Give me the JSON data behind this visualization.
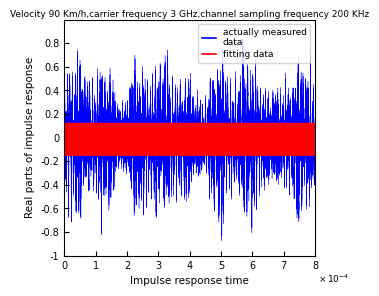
{
  "title": "Velocity 90 Km/h,carrier frequency 3 GHz,channel sampling frequency 200 KHz",
  "xlabel": "Impulse response time",
  "ylabel": "Real parts of impulse response",
  "xlim": [
    0,
    80000
  ],
  "ylim": [
    -1,
    1
  ],
  "xticks": [
    0,
    10000,
    20000,
    30000,
    40000,
    50000,
    60000,
    70000,
    80000
  ],
  "xticklabels": [
    "0",
    "1",
    "2",
    "3",
    "4",
    "5",
    "6",
    "7",
    "8"
  ],
  "yticks": [
    -1.0,
    -0.8,
    -0.6,
    -0.4,
    -0.2,
    0.0,
    0.2,
    0.4,
    0.6,
    0.8
  ],
  "yticklabels": [
    "-1",
    "-0.8",
    "-0.6",
    "-0.4",
    "-0.2",
    "0",
    "0.2",
    "0.4",
    "0.6",
    "0.8"
  ],
  "blue_color": "#0000ff",
  "red_color": "#ff0000",
  "legend_blue": "actually measured\ndata",
  "legend_red": "fitting data",
  "n_points": 200000,
  "red_upper": 0.13,
  "red_lower": -0.15,
  "title_fontsize": 6.5,
  "label_fontsize": 7.5,
  "tick_fontsize": 7,
  "legend_fontsize": 6.5,
  "background_color": "#ffffff"
}
